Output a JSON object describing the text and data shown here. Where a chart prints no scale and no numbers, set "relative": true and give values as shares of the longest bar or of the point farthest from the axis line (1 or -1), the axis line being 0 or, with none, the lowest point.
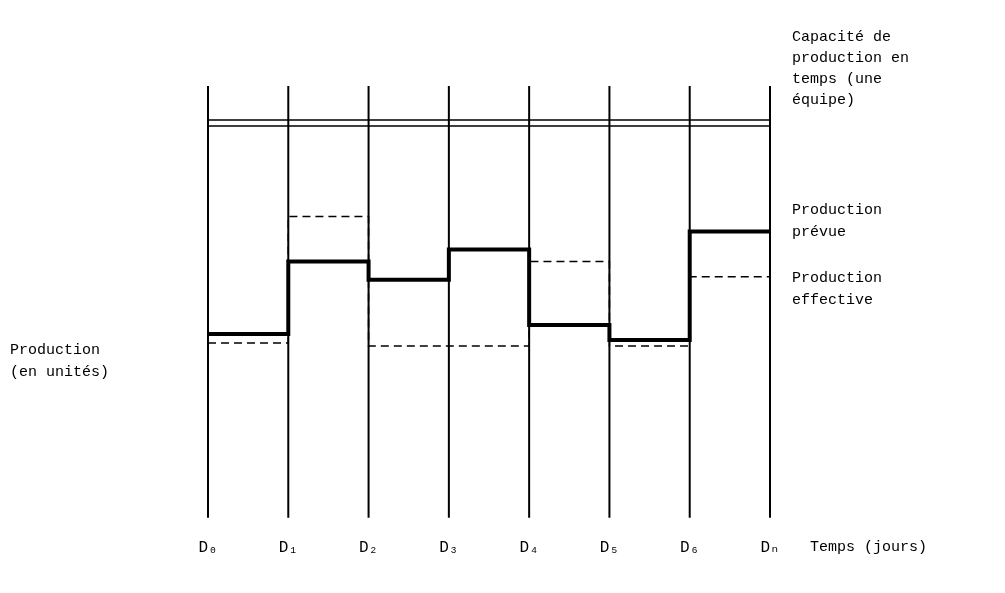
{
  "chart_data": {
    "type": "step",
    "relative": true,
    "xlabel": "Temps (jours)",
    "ylabel": "Production (en unités)",
    "categories": [
      "D₀",
      "D₁",
      "D₂",
      "D₃",
      "D₄",
      "D₅",
      "D₆",
      "Dₙ"
    ],
    "series": [
      {
        "name": "Production prévue",
        "color": "#000000",
        "line_style": "solid",
        "values": [
          0.61,
          0.85,
          0.79,
          0.89,
          0.64,
          0.59,
          0.95,
          0.95
        ]
      },
      {
        "name": "Production effective",
        "color": "#000000",
        "line_style": "dashed",
        "values": [
          0.58,
          1,
          0.57,
          0.57,
          0.85,
          0.57,
          0.8,
          0.8
        ]
      }
    ],
    "ref_lines": [
      {
        "axis": "y",
        "value": 1.3,
        "label": "Capacité de production en temps (une équipe)",
        "color": "#000000"
      }
    ],
    "grid": "x",
    "legend": false,
    "marker": "none"
  }
}
